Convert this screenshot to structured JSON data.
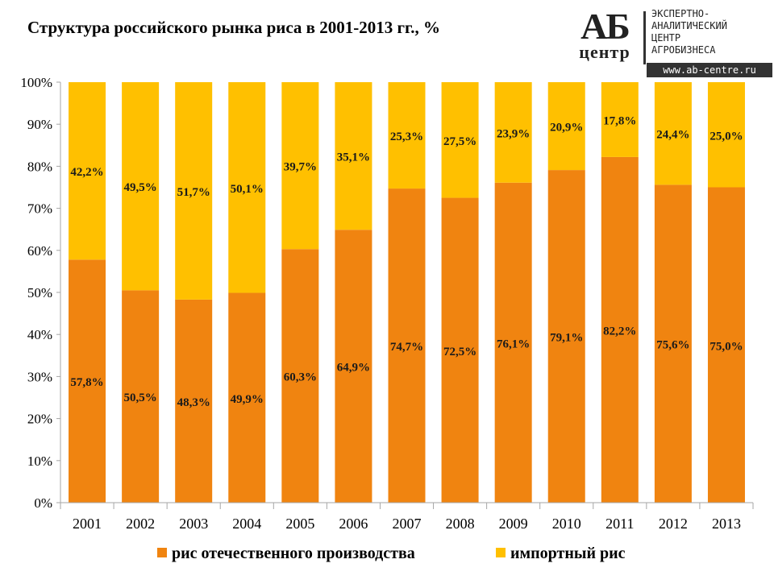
{
  "title": "Структура российского рынка риса в 2001-2013 гг., %",
  "logo": {
    "mark_top": "АБ",
    "mark_bottom": "центр",
    "lines": [
      "ЭКСПЕРТНО-",
      "АНАЛИТИЧЕСКИЙ",
      "ЦЕНТР",
      "АГРОБИЗНЕСА"
    ],
    "url": "www.ab-centre.ru"
  },
  "colors": {
    "domestic": "#F08410",
    "import": "#FFC000",
    "axis": "#a6a6a6"
  },
  "chart_data": {
    "type": "bar",
    "stacked": true,
    "title": "Структура российского рынка риса в 2001-2013 гг., %",
    "categories": [
      "2001",
      "2002",
      "2003",
      "2004",
      "2005",
      "2006",
      "2007",
      "2008",
      "2009",
      "2010",
      "2011",
      "2012",
      "2013"
    ],
    "series": [
      {
        "name": "рис отечественного производства",
        "values": [
          57.8,
          50.5,
          48.3,
          49.9,
          60.3,
          64.9,
          74.7,
          72.5,
          76.1,
          79.1,
          82.2,
          75.6,
          75.0
        ],
        "labels": [
          "57,8%",
          "50,5%",
          "48,3%",
          "49,9%",
          "60,3%",
          "64,9%",
          "74,7%",
          "72,5%",
          "76,1%",
          "79,1%",
          "82,2%",
          "75,6%",
          "75,0%"
        ]
      },
      {
        "name": "импортный рис",
        "values": [
          42.2,
          49.5,
          51.7,
          50.1,
          39.7,
          35.1,
          25.3,
          27.5,
          23.9,
          20.9,
          17.8,
          24.4,
          25.0
        ],
        "labels": [
          "42,2%",
          "49,5%",
          "51,7%",
          "50,1%",
          "39,7%",
          "35,1%",
          "25,3%",
          "27,5%",
          "23,9%",
          "20,9%",
          "17,8%",
          "24,4%",
          "25,0%"
        ]
      }
    ],
    "ylim": [
      0,
      100
    ],
    "yticks": [
      "0%",
      "10%",
      "20%",
      "30%",
      "40%",
      "50%",
      "60%",
      "70%",
      "80%",
      "90%",
      "100%"
    ],
    "xlabel": "",
    "ylabel": "",
    "grid": false,
    "legend": "bottom"
  }
}
